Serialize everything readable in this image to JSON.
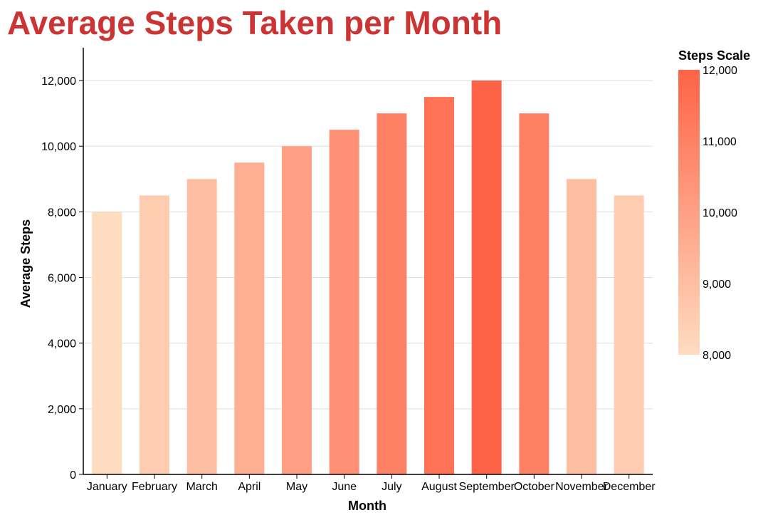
{
  "chart_data": {
    "type": "bar",
    "title": "Average Steps Taken per Month",
    "xlabel": "Month",
    "ylabel": "Average Steps",
    "categories": [
      "January",
      "February",
      "March",
      "April",
      "May",
      "June",
      "July",
      "August",
      "September",
      "October",
      "November",
      "December"
    ],
    "values": [
      8000,
      8500,
      9000,
      9500,
      10000,
      10500,
      11000,
      11500,
      12000,
      11000,
      9000,
      8500
    ],
    "ylim": [
      0,
      13000
    ],
    "yticks": [
      "0",
      "2,000",
      "4,000",
      "6,000",
      "8,000",
      "10,000",
      "12,000"
    ],
    "ytick_values": [
      0,
      2000,
      4000,
      6000,
      8000,
      10000,
      12000
    ],
    "grid": true,
    "legend": {
      "title": "Steps Scale",
      "placement": "right",
      "labels": [
        "12,000",
        "11,000",
        "10,000",
        "9,000",
        "8,000"
      ],
      "label_values": [
        12000,
        11000,
        10000,
        9000,
        8000
      ],
      "domain": [
        8000,
        12000
      ],
      "color_low": "#fedcc0",
      "color_high": "#ff6347"
    },
    "title_color": "#cc3333"
  }
}
